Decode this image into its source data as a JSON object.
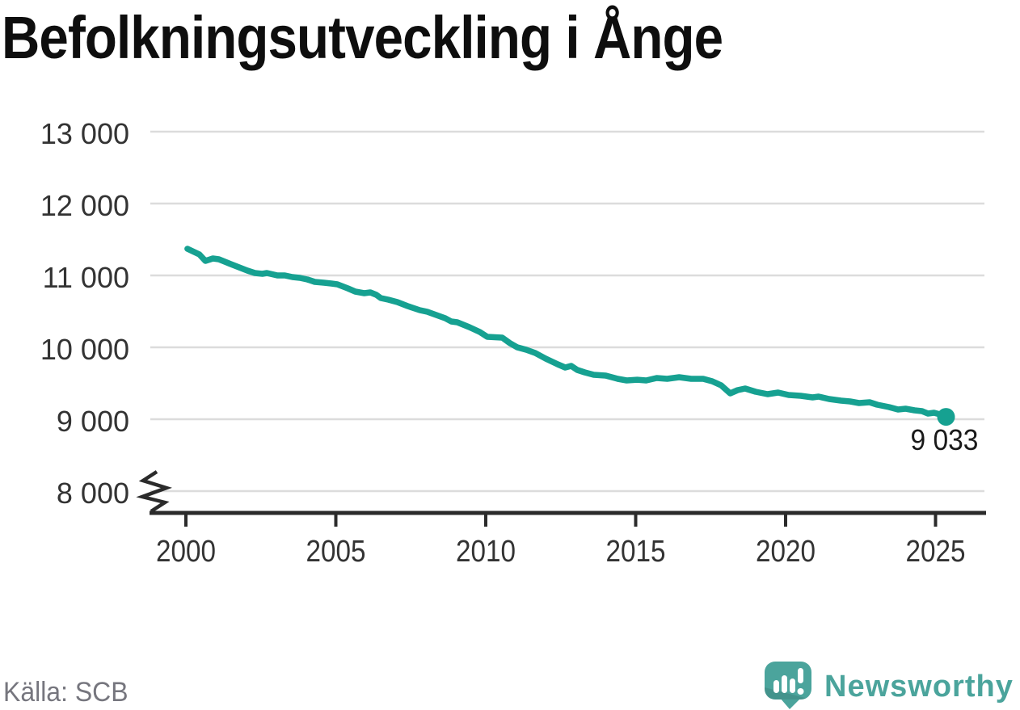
{
  "title": "Befolkningsutveckling i Ånge",
  "source": "Källa: SCB",
  "branding": {
    "wordmark": "Newsworthy",
    "logo_icon": "newsworthy-speech-bubble-chart-icon",
    "brand_color": "#4BA49C"
  },
  "icons": {
    "axis_break": "axis-break-zigzag-icon"
  },
  "chart_data": {
    "type": "line",
    "title": "Befolkningsutveckling i Ånge",
    "xlabel": "",
    "ylabel": "",
    "grid": "horizontal",
    "legend": "none",
    "y_axis_break": true,
    "xlim": [
      1998.8,
      2026.7
    ],
    "ylim": [
      8000,
      13300
    ],
    "line_color": "#16A191",
    "axis_color": "#2B2B2B",
    "grid_color": "#DCDCDC",
    "tick_label_color": "#333333",
    "end_label": "9 033",
    "end_value": 9033,
    "x_ticks": {
      "values": [
        2000,
        2005,
        2010,
        2015,
        2020,
        2025
      ],
      "labels": [
        "2000",
        "2005",
        "2010",
        "2015",
        "2020",
        "2025"
      ]
    },
    "y_ticks": {
      "values": [
        13000,
        12000,
        11000,
        10000,
        9000,
        8000
      ],
      "labels": [
        "13 000",
        "12 000",
        "11 000",
        "10 000",
        "9 000",
        "8 000"
      ]
    },
    "series": [
      {
        "name": "Befolkning i Ånge",
        "color": "#16A191",
        "points": [
          [
            2000.05,
            11371
          ],
          [
            2000.45,
            11292
          ],
          [
            2000.65,
            11202
          ],
          [
            2000.9,
            11236
          ],
          [
            2001.1,
            11225
          ],
          [
            2001.5,
            11157
          ],
          [
            2002.05,
            11067
          ],
          [
            2002.3,
            11034
          ],
          [
            2002.55,
            11022
          ],
          [
            2002.7,
            11034
          ],
          [
            2003.05,
            11000
          ],
          [
            2003.3,
            11000
          ],
          [
            2003.55,
            10978
          ],
          [
            2003.8,
            10966
          ],
          [
            2004.05,
            10944
          ],
          [
            2004.3,
            10910
          ],
          [
            2004.6,
            10899
          ],
          [
            2004.85,
            10888
          ],
          [
            2005.05,
            10876
          ],
          [
            2005.4,
            10820
          ],
          [
            2005.65,
            10775
          ],
          [
            2005.95,
            10753
          ],
          [
            2006.15,
            10764
          ],
          [
            2006.35,
            10730
          ],
          [
            2006.5,
            10685
          ],
          [
            2006.75,
            10663
          ],
          [
            2007.05,
            10629
          ],
          [
            2007.4,
            10573
          ],
          [
            2007.8,
            10517
          ],
          [
            2008.05,
            10494
          ],
          [
            2008.35,
            10449
          ],
          [
            2008.65,
            10404
          ],
          [
            2008.85,
            10360
          ],
          [
            2009.05,
            10348
          ],
          [
            2009.45,
            10281
          ],
          [
            2009.8,
            10213
          ],
          [
            2010.05,
            10146
          ],
          [
            2010.55,
            10135
          ],
          [
            2010.8,
            10060
          ],
          [
            2011.05,
            10000
          ],
          [
            2011.35,
            9966
          ],
          [
            2011.65,
            9921
          ],
          [
            2012.0,
            9843
          ],
          [
            2012.4,
            9764
          ],
          [
            2012.65,
            9719
          ],
          [
            2012.85,
            9742
          ],
          [
            2013.05,
            9685
          ],
          [
            2013.3,
            9652
          ],
          [
            2013.6,
            9618
          ],
          [
            2014.0,
            9607
          ],
          [
            2014.4,
            9562
          ],
          [
            2014.7,
            9539
          ],
          [
            2015.05,
            9550
          ],
          [
            2015.35,
            9539
          ],
          [
            2015.7,
            9573
          ],
          [
            2016.05,
            9562
          ],
          [
            2016.45,
            9584
          ],
          [
            2016.85,
            9562
          ],
          [
            2017.25,
            9562
          ],
          [
            2017.55,
            9528
          ],
          [
            2017.85,
            9472
          ],
          [
            2018.15,
            9360
          ],
          [
            2018.4,
            9404
          ],
          [
            2018.65,
            9427
          ],
          [
            2019.0,
            9382
          ],
          [
            2019.4,
            9348
          ],
          [
            2019.75,
            9371
          ],
          [
            2020.1,
            9337
          ],
          [
            2020.5,
            9326
          ],
          [
            2020.9,
            9303
          ],
          [
            2021.1,
            9315
          ],
          [
            2021.45,
            9281
          ],
          [
            2021.85,
            9258
          ],
          [
            2022.15,
            9247
          ],
          [
            2022.45,
            9225
          ],
          [
            2022.8,
            9236
          ],
          [
            2023.05,
            9202
          ],
          [
            2023.45,
            9169
          ],
          [
            2023.75,
            9135
          ],
          [
            2024.0,
            9146
          ],
          [
            2024.3,
            9124
          ],
          [
            2024.55,
            9112
          ],
          [
            2024.75,
            9079
          ],
          [
            2024.95,
            9090
          ],
          [
            2025.15,
            9067
          ],
          [
            2025.35,
            9033
          ]
        ]
      }
    ]
  }
}
